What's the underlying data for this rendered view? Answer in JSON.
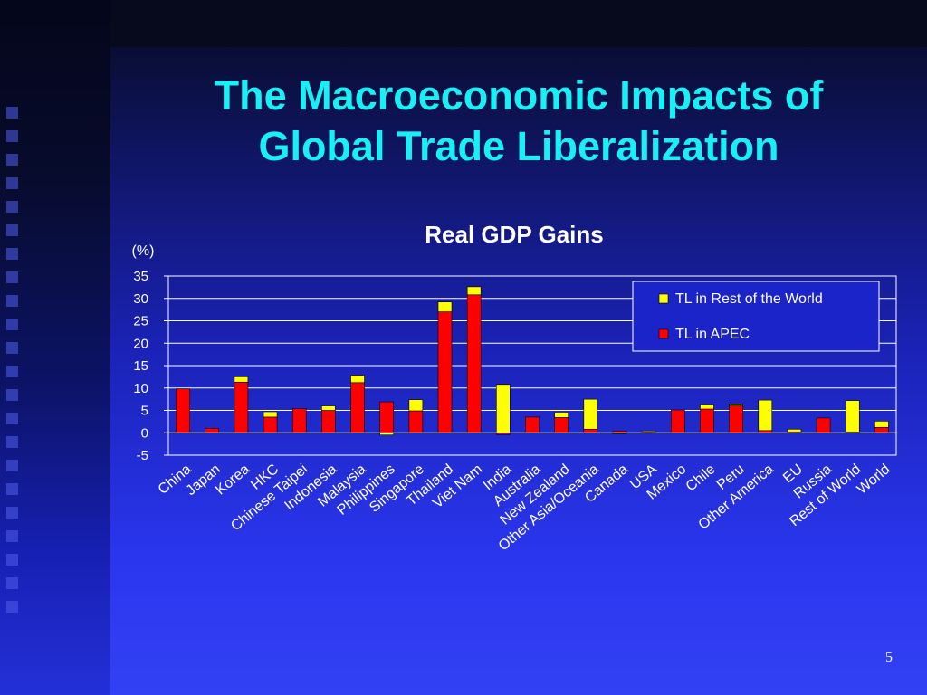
{
  "slide": {
    "title_line1": "The Macroeconomic Impacts of",
    "title_line2": "Global Trade Liberalization",
    "page_number": "5"
  },
  "chart_data": {
    "type": "bar",
    "stacked": true,
    "title": "Real GDP Gains",
    "ylabel": "(%)",
    "ylim": [
      -5,
      35
    ],
    "yticks": [
      35,
      30,
      25,
      20,
      15,
      10,
      5,
      0,
      -5
    ],
    "legend_position": "top-right",
    "categories": [
      "China",
      "Japan",
      "Korea",
      "HKC",
      "Chinese Taipei",
      "Indonesia",
      "Malaysia",
      "Philippines",
      "Singapore",
      "Thailand",
      "Viet Nam",
      "India",
      "Australia",
      "New Zealand",
      "Other Asia/Oceania",
      "Canada",
      "USA",
      "Mexico",
      "Chile",
      "Peru",
      "Other America",
      "EU",
      "Russia",
      "Rest of World",
      "World"
    ],
    "series": [
      {
        "name": "TL in APEC",
        "color": "#ff0000",
        "values": [
          9.8,
          1.0,
          11.3,
          3.5,
          5.4,
          5.0,
          11.2,
          6.9,
          4.9,
          27.0,
          30.8,
          -0.4,
          3.5,
          3.4,
          0.8,
          0.4,
          0.2,
          5.1,
          5.3,
          6.0,
          0.5,
          0.2,
          3.3,
          0.2,
          1.2
        ]
      },
      {
        "name": "TL in Rest of the World",
        "color": "#ffff00",
        "values": [
          0.0,
          0.0,
          1.2,
          1.2,
          0.0,
          1.0,
          1.6,
          -0.5,
          2.5,
          2.2,
          1.8,
          10.8,
          0.0,
          1.2,
          6.7,
          -0.2,
          0.2,
          0.0,
          1.0,
          0.4,
          6.8,
          0.6,
          0.0,
          7.0,
          1.4
        ]
      }
    ]
  }
}
